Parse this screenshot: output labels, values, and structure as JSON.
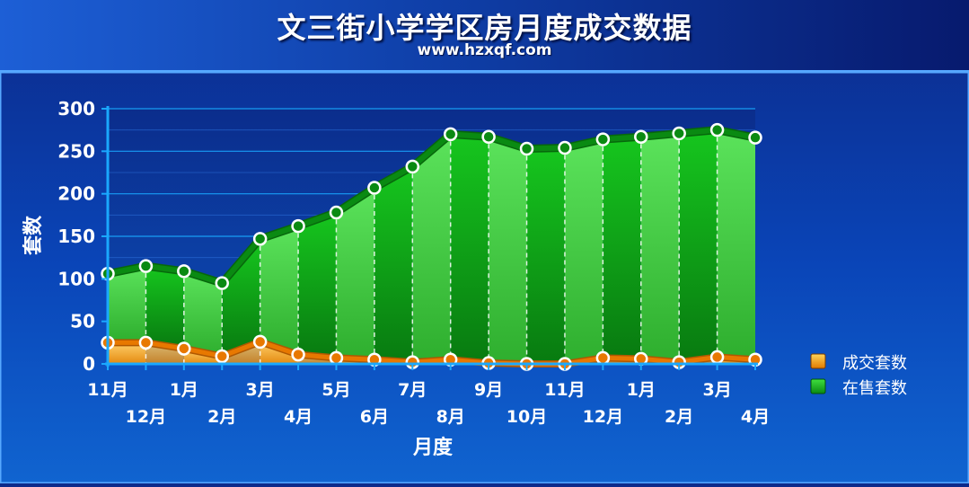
{
  "title": "文三街小学学区房月度成交数据",
  "subtitle": "www.hzxqf.com",
  "colors": {
    "sold_line": "#e87800",
    "sold_fill": "#f6b84a",
    "sale_line": "#0a8a12",
    "sale_fill_a": "#4cd44c",
    "sale_fill_b": "#12a81a",
    "grid": "#1aa8ff",
    "text": "#ffffff"
  },
  "chart_data": {
    "type": "area",
    "title": "文三街小学学区房月度成交数据",
    "xlabel": "月度",
    "ylabel": "套数",
    "ylim": [
      0,
      300
    ],
    "yticks": [
      0,
      50,
      100,
      150,
      200,
      250,
      300
    ],
    "grid": true,
    "legend_position": "right",
    "categories": [
      "11月",
      "12月",
      "1月",
      "2月",
      "3月",
      "4月",
      "5月",
      "6月",
      "7月",
      "8月",
      "9月",
      "10月",
      "11月",
      "12月",
      "1月",
      "2月",
      "3月",
      "4月"
    ],
    "series": [
      {
        "name": "成交套数",
        "values": [
          25,
          25,
          18,
          9,
          26,
          11,
          7,
          5,
          2,
          5,
          1,
          0,
          0,
          7,
          6,
          2,
          8,
          5
        ]
      },
      {
        "name": "在售套数",
        "values": [
          106,
          115,
          109,
          95,
          147,
          162,
          178,
          207,
          232,
          270,
          267,
          253,
          254,
          264,
          267,
          271,
          275,
          266
        ]
      }
    ]
  }
}
